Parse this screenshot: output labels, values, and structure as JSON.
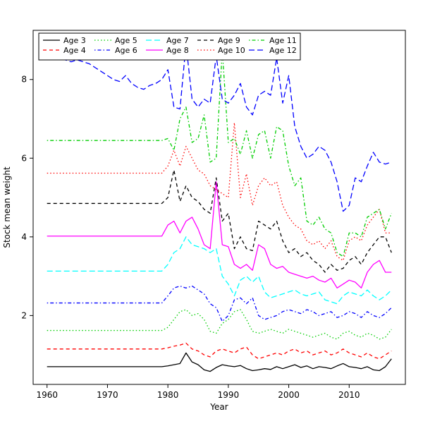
{
  "figure": {
    "background": "#ffffff",
    "axis_color": "#000000"
  },
  "chart_data": {
    "type": "line",
    "title": "",
    "xlabel": "Year",
    "ylabel": "Stock mean weight",
    "xlim": [
      1957.7,
      2019.3
    ],
    "ylim": [
      0.25,
      9.25
    ],
    "x_ticks": [
      1960,
      1970,
      1980,
      1990,
      2000,
      2010
    ],
    "y_ticks": [
      2,
      4,
      6,
      8
    ],
    "grid": false,
    "legend_position": "top-left",
    "legend_columns": 5,
    "x": [
      1960,
      1961,
      1962,
      1963,
      1964,
      1965,
      1966,
      1967,
      1968,
      1969,
      1970,
      1971,
      1972,
      1973,
      1974,
      1975,
      1976,
      1977,
      1978,
      1979,
      1980,
      1981,
      1982,
      1983,
      1984,
      1985,
      1986,
      1987,
      1988,
      1989,
      1990,
      1991,
      1992,
      1993,
      1994,
      1995,
      1996,
      1997,
      1998,
      1999,
      2000,
      2001,
      2002,
      2003,
      2004,
      2005,
      2006,
      2007,
      2008,
      2009,
      2010,
      2011,
      2012,
      2013,
      2014,
      2015,
      2016,
      2017
    ],
    "series": [
      {
        "name": "Age 3",
        "color": "#000000",
        "linetype": "solid",
        "values": [
          0.7,
          0.7,
          0.7,
          0.7,
          0.7,
          0.7,
          0.7,
          0.7,
          0.7,
          0.7,
          0.7,
          0.7,
          0.7,
          0.7,
          0.7,
          0.7,
          0.7,
          0.7,
          0.7,
          0.7,
          0.72,
          0.75,
          0.78,
          1.05,
          0.82,
          0.75,
          0.62,
          0.58,
          0.68,
          0.75,
          0.72,
          0.7,
          0.73,
          0.65,
          0.6,
          0.62,
          0.65,
          0.63,
          0.7,
          0.65,
          0.7,
          0.75,
          0.68,
          0.72,
          0.65,
          0.7,
          0.68,
          0.65,
          0.72,
          0.78,
          0.7,
          0.68,
          0.65,
          0.7,
          0.62,
          0.6,
          0.7,
          0.9
        ]
      },
      {
        "name": "Age 4",
        "color": "#ff0000",
        "linetype": "dashed",
        "values": [
          1.15,
          1.15,
          1.15,
          1.15,
          1.15,
          1.15,
          1.15,
          1.15,
          1.15,
          1.15,
          1.15,
          1.15,
          1.15,
          1.15,
          1.15,
          1.15,
          1.15,
          1.15,
          1.15,
          1.15,
          1.18,
          1.22,
          1.25,
          1.3,
          1.15,
          1.1,
          1.0,
          0.95,
          1.1,
          1.15,
          1.1,
          1.05,
          1.15,
          1.2,
          1.0,
          0.9,
          0.95,
          1.0,
          1.05,
          1.0,
          1.1,
          1.15,
          1.05,
          1.1,
          1.0,
          1.05,
          1.1,
          1.0,
          1.05,
          1.15,
          1.05,
          1.0,
          0.95,
          1.05,
          0.95,
          0.9,
          1.0,
          1.1
        ]
      },
      {
        "name": "Age 5",
        "color": "#00cd00",
        "linetype": "dotted",
        "values": [
          1.62,
          1.62,
          1.62,
          1.62,
          1.62,
          1.62,
          1.62,
          1.62,
          1.62,
          1.62,
          1.62,
          1.62,
          1.62,
          1.62,
          1.62,
          1.62,
          1.62,
          1.62,
          1.62,
          1.62,
          1.7,
          1.9,
          2.1,
          2.15,
          2.0,
          2.05,
          1.9,
          1.6,
          1.55,
          1.8,
          1.9,
          2.1,
          2.15,
          1.9,
          1.6,
          1.55,
          1.6,
          1.65,
          1.6,
          1.55,
          1.65,
          1.6,
          1.55,
          1.5,
          1.45,
          1.5,
          1.55,
          1.45,
          1.4,
          1.55,
          1.6,
          1.5,
          1.45,
          1.55,
          1.5,
          1.4,
          1.45,
          1.65
        ]
      },
      {
        "name": "Age 6",
        "color": "#0000ff",
        "linetype": "dotdash",
        "values": [
          2.32,
          2.32,
          2.32,
          2.32,
          2.32,
          2.32,
          2.32,
          2.32,
          2.32,
          2.32,
          2.32,
          2.32,
          2.32,
          2.32,
          2.32,
          2.32,
          2.32,
          2.32,
          2.32,
          2.32,
          2.5,
          2.7,
          2.75,
          2.7,
          2.75,
          2.65,
          2.55,
          2.3,
          2.2,
          1.85,
          2.0,
          2.4,
          2.45,
          2.3,
          2.45,
          2.0,
          1.9,
          1.95,
          2.0,
          2.1,
          2.15,
          2.1,
          2.05,
          2.15,
          2.1,
          2.0,
          2.05,
          2.1,
          1.95,
          2.0,
          2.1,
          2.05,
          1.95,
          2.1,
          2.0,
          1.95,
          2.05,
          2.2
        ]
      },
      {
        "name": "Age 7",
        "color": "#00ffff",
        "linetype": "longdash",
        "values": [
          3.13,
          3.13,
          3.13,
          3.13,
          3.13,
          3.13,
          3.13,
          3.13,
          3.13,
          3.13,
          3.13,
          3.13,
          3.13,
          3.13,
          3.13,
          3.13,
          3.13,
          3.13,
          3.13,
          3.13,
          3.3,
          3.6,
          3.7,
          4.0,
          3.8,
          3.75,
          3.7,
          3.6,
          3.7,
          3.0,
          2.8,
          2.5,
          2.9,
          3.0,
          2.85,
          3.0,
          2.6,
          2.45,
          2.5,
          2.55,
          2.6,
          2.65,
          2.55,
          2.5,
          2.55,
          2.6,
          2.4,
          2.35,
          2.3,
          2.5,
          2.6,
          2.55,
          2.5,
          2.65,
          2.5,
          2.4,
          2.5,
          2.65
        ]
      },
      {
        "name": "Age 8",
        "color": "#ff00ff",
        "linetype": "solid",
        "values": [
          4.02,
          4.02,
          4.02,
          4.02,
          4.02,
          4.02,
          4.02,
          4.02,
          4.02,
          4.02,
          4.02,
          4.02,
          4.02,
          4.02,
          4.02,
          4.02,
          4.02,
          4.02,
          4.02,
          4.02,
          4.3,
          4.4,
          4.1,
          4.4,
          4.5,
          4.2,
          3.8,
          3.7,
          5.4,
          3.8,
          3.75,
          3.3,
          3.2,
          3.3,
          3.15,
          3.8,
          3.7,
          3.3,
          3.2,
          3.25,
          3.1,
          3.05,
          3.0,
          2.95,
          3.0,
          2.9,
          2.85,
          2.95,
          2.7,
          2.8,
          2.9,
          2.85,
          2.7,
          3.1,
          3.3,
          3.4,
          3.1,
          3.1
        ]
      },
      {
        "name": "Age 9",
        "color": "#000000",
        "linetype": "dashed",
        "values": [
          4.85,
          4.85,
          4.85,
          4.85,
          4.85,
          4.85,
          4.85,
          4.85,
          4.85,
          4.85,
          4.85,
          4.85,
          4.85,
          4.85,
          4.85,
          4.85,
          4.85,
          4.85,
          4.85,
          4.85,
          5.0,
          5.7,
          4.9,
          5.3,
          5.0,
          4.9,
          4.7,
          4.6,
          5.5,
          4.4,
          4.6,
          3.7,
          4.0,
          3.7,
          3.65,
          4.4,
          4.3,
          4.2,
          4.4,
          3.9,
          3.6,
          3.7,
          3.5,
          3.6,
          3.4,
          3.3,
          3.1,
          3.3,
          3.15,
          3.2,
          3.4,
          3.5,
          3.3,
          3.6,
          3.8,
          4.0,
          4.0,
          3.6
        ]
      },
      {
        "name": "Age 10",
        "color": "#ff0000",
        "linetype": "dotted",
        "values": [
          5.62,
          5.62,
          5.62,
          5.62,
          5.62,
          5.62,
          5.62,
          5.62,
          5.62,
          5.62,
          5.62,
          5.62,
          5.62,
          5.62,
          5.62,
          5.62,
          5.62,
          5.62,
          5.62,
          5.62,
          5.8,
          6.2,
          5.8,
          6.3,
          6.0,
          5.7,
          5.6,
          5.3,
          5.2,
          5.1,
          5.0,
          6.9,
          5.0,
          5.6,
          4.8,
          5.3,
          5.5,
          5.3,
          5.4,
          4.8,
          4.5,
          4.3,
          4.2,
          3.9,
          3.8,
          3.9,
          3.7,
          3.9,
          3.5,
          3.4,
          3.9,
          4.0,
          3.9,
          4.3,
          4.5,
          4.7,
          4.1,
          4.1
        ]
      },
      {
        "name": "Age 11",
        "color": "#00cd00",
        "linetype": "dotdash",
        "values": [
          6.45,
          6.45,
          6.45,
          6.45,
          6.45,
          6.45,
          6.45,
          6.45,
          6.45,
          6.45,
          6.45,
          6.45,
          6.45,
          6.45,
          6.45,
          6.45,
          6.45,
          6.45,
          6.45,
          6.45,
          6.5,
          6.2,
          7.0,
          7.3,
          6.4,
          6.5,
          7.1,
          5.9,
          6.0,
          8.75,
          6.4,
          6.5,
          6.1,
          6.7,
          6.0,
          6.6,
          6.7,
          6.0,
          6.8,
          6.7,
          5.8,
          5.3,
          5.5,
          4.4,
          4.3,
          4.5,
          4.2,
          4.1,
          3.6,
          3.5,
          4.1,
          4.1,
          4.0,
          4.5,
          4.6,
          4.7,
          4.2,
          4.6
        ]
      },
      {
        "name": "Age 12",
        "color": "#0000ff",
        "linetype": "longdash",
        "values": [
          8.55,
          8.65,
          8.6,
          8.5,
          8.45,
          8.5,
          8.45,
          8.4,
          8.3,
          8.2,
          8.1,
          8.0,
          7.95,
          8.1,
          7.9,
          7.8,
          7.75,
          7.85,
          7.9,
          8.0,
          8.25,
          7.3,
          7.25,
          8.9,
          7.5,
          7.3,
          7.5,
          7.4,
          8.6,
          7.5,
          7.4,
          7.6,
          7.9,
          7.3,
          7.1,
          7.6,
          7.7,
          7.6,
          8.55,
          7.4,
          8.1,
          6.8,
          6.3,
          6.0,
          6.1,
          6.3,
          6.2,
          5.9,
          5.4,
          4.65,
          4.8,
          5.5,
          5.4,
          5.8,
          6.15,
          5.9,
          5.85,
          5.9
        ]
      }
    ]
  }
}
